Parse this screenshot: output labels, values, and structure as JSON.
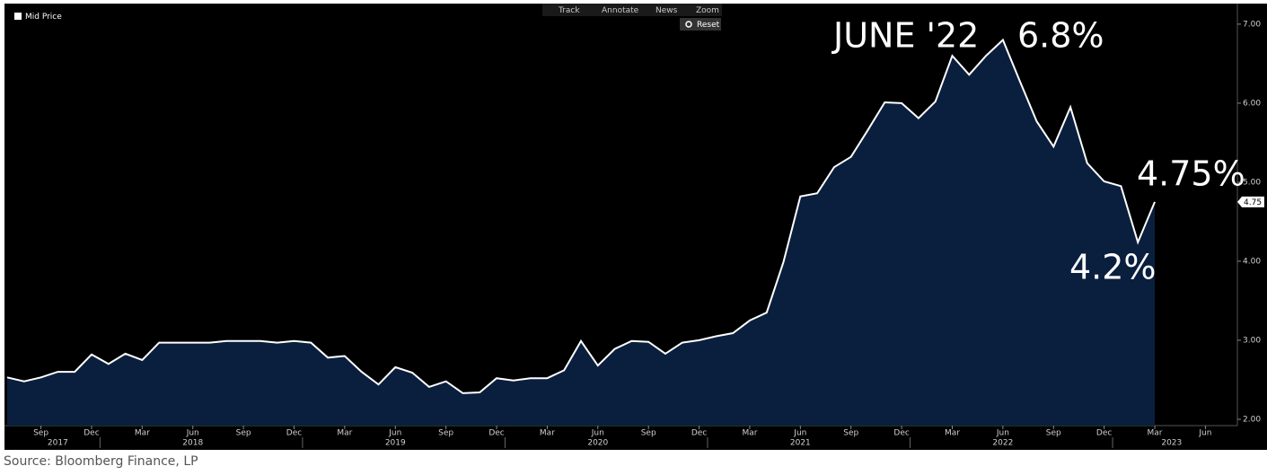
{
  "chart_data": {
    "type": "area",
    "source": "Source: Bloomberg Finance, LP",
    "toolbar": [
      "Track",
      "Annotate",
      "News",
      "Zoom",
      "Reset"
    ],
    "annotations": [
      "JUNE '22",
      "6.8%",
      "4.75%",
      "4.2%"
    ],
    "current_value_tag": "4.75",
    "x": [
      "2017-07",
      "2017-08",
      "2017-09",
      "2017-10",
      "2017-11",
      "2017-12",
      "2018-01",
      "2018-02",
      "2018-03",
      "2018-04",
      "2018-05",
      "2018-06",
      "2018-07",
      "2018-08",
      "2018-09",
      "2018-10",
      "2018-11",
      "2018-12",
      "2019-01",
      "2019-02",
      "2019-03",
      "2019-04",
      "2019-05",
      "2019-06",
      "2019-07",
      "2019-08",
      "2019-09",
      "2019-10",
      "2019-11",
      "2019-12",
      "2020-01",
      "2020-02",
      "2020-03",
      "2020-04",
      "2020-05",
      "2020-06",
      "2020-07",
      "2020-08",
      "2020-09",
      "2020-10",
      "2020-11",
      "2020-12",
      "2021-01",
      "2021-02",
      "2021-03",
      "2021-04",
      "2021-05",
      "2021-06",
      "2021-07",
      "2021-08",
      "2021-09",
      "2021-10",
      "2021-11",
      "2021-12",
      "2022-01",
      "2022-02",
      "2022-03",
      "2022-04",
      "2022-05",
      "2022-06",
      "2022-07",
      "2022-08",
      "2022-09",
      "2022-10",
      "2022-11",
      "2022-12",
      "2023-01",
      "2023-02",
      "2023-03"
    ],
    "series": [
      {
        "name": "Mid Price",
        "color": "#ffffff",
        "fill": "#0a1f3d",
        "values": [
          2.53,
          2.48,
          2.53,
          2.6,
          2.6,
          2.82,
          2.7,
          2.83,
          2.75,
          2.97,
          2.97,
          2.97,
          2.97,
          2.99,
          2.99,
          2.99,
          2.97,
          2.99,
          2.97,
          2.78,
          2.8,
          2.6,
          2.44,
          2.66,
          2.59,
          2.41,
          2.48,
          2.33,
          2.34,
          2.52,
          2.49,
          2.52,
          2.52,
          2.62,
          2.99,
          2.68,
          2.89,
          2.99,
          2.98,
          2.83,
          2.97,
          3.0,
          3.05,
          3.09,
          3.25,
          3.35,
          3.99,
          4.82,
          4.86,
          5.19,
          5.32,
          5.66,
          6.01,
          6.0,
          5.81,
          6.02,
          6.6,
          6.36,
          6.6,
          6.8,
          6.28,
          5.77,
          5.45,
          5.95,
          5.24,
          5.01,
          4.95,
          4.24,
          4.75
        ]
      }
    ],
    "xlim": [
      "2017-07",
      "2023-08"
    ],
    "xticks": [
      {
        "value": "2017-09",
        "label": "Sep"
      },
      {
        "value": "2017-12",
        "label": "Dec"
      },
      {
        "value": "2018-03",
        "label": "Mar"
      },
      {
        "value": "2018-06",
        "label": "Jun"
      },
      {
        "value": "2018-09",
        "label": "Sep"
      },
      {
        "value": "2018-12",
        "label": "Dec"
      },
      {
        "value": "2019-03",
        "label": "Mar"
      },
      {
        "value": "2019-06",
        "label": "Jun"
      },
      {
        "value": "2019-09",
        "label": "Sep"
      },
      {
        "value": "2019-12",
        "label": "Dec"
      },
      {
        "value": "2020-03",
        "label": "Mar"
      },
      {
        "value": "2020-06",
        "label": "Jun"
      },
      {
        "value": "2020-09",
        "label": "Sep"
      },
      {
        "value": "2020-12",
        "label": "Dec"
      },
      {
        "value": "2021-03",
        "label": "Mar"
      },
      {
        "value": "2021-06",
        "label": "Jun"
      },
      {
        "value": "2021-09",
        "label": "Sep"
      },
      {
        "value": "2021-12",
        "label": "Dec"
      },
      {
        "value": "2022-03",
        "label": "Mar"
      },
      {
        "value": "2022-06",
        "label": "Jun"
      },
      {
        "value": "2022-09",
        "label": "Sep"
      },
      {
        "value": "2022-12",
        "label": "Dec"
      },
      {
        "value": "2023-03",
        "label": "Mar"
      },
      {
        "value": "2023-06",
        "label": "Jun"
      }
    ],
    "year_labels": [
      {
        "value": "2017-10",
        "label": "2017"
      },
      {
        "value": "2018-06",
        "label": "2018"
      },
      {
        "value": "2019-06",
        "label": "2019"
      },
      {
        "value": "2020-06",
        "label": "2020"
      },
      {
        "value": "2021-06",
        "label": "2021"
      },
      {
        "value": "2022-06",
        "label": "2022"
      },
      {
        "value": "2023-04",
        "label": "2023"
      }
    ],
    "ylim": [
      1.92,
      7.26
    ],
    "yticks": [
      {
        "value": 2,
        "label": "2.00"
      },
      {
        "value": 3,
        "label": "3.00"
      },
      {
        "value": 4,
        "label": "4.00"
      },
      {
        "value": 5,
        "label": "5.00"
      },
      {
        "value": 6,
        "label": "6.00"
      },
      {
        "value": 7,
        "label": "7.00"
      }
    ]
  }
}
